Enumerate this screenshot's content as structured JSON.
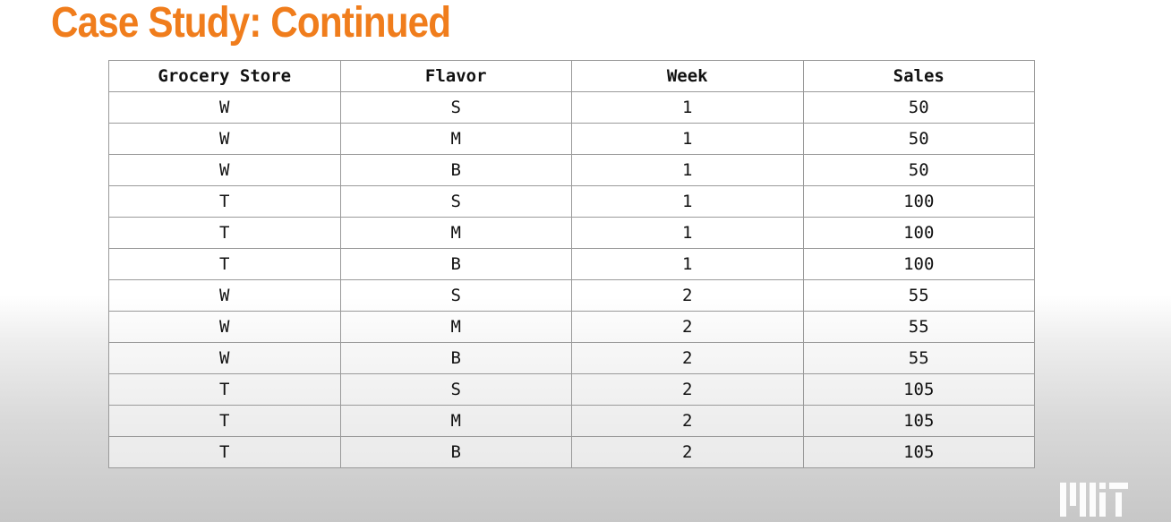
{
  "slide": {
    "title": "Case Study: Continued"
  },
  "table": {
    "headers": [
      "Grocery Store",
      "Flavor",
      "Week",
      "Sales"
    ],
    "rows": [
      [
        "W",
        "S",
        "1",
        "50"
      ],
      [
        "W",
        "M",
        "1",
        "50"
      ],
      [
        "W",
        "B",
        "1",
        "50"
      ],
      [
        "T",
        "S",
        "1",
        "100"
      ],
      [
        "T",
        "M",
        "1",
        "100"
      ],
      [
        "T",
        "B",
        "1",
        "100"
      ],
      [
        "W",
        "S",
        "2",
        "55"
      ],
      [
        "W",
        "M",
        "2",
        "55"
      ],
      [
        "W",
        "B",
        "2",
        "55"
      ],
      [
        "T",
        "S",
        "2",
        "105"
      ],
      [
        "T",
        "M",
        "2",
        "105"
      ],
      [
        "T",
        "B",
        "2",
        "105"
      ]
    ]
  },
  "logo": {
    "icon": "mit-logo",
    "text": "MIT"
  },
  "colors": {
    "title": "#f07d1c",
    "grid": "#9a9a9a",
    "text": "#111111",
    "logo": "#ffffff"
  }
}
